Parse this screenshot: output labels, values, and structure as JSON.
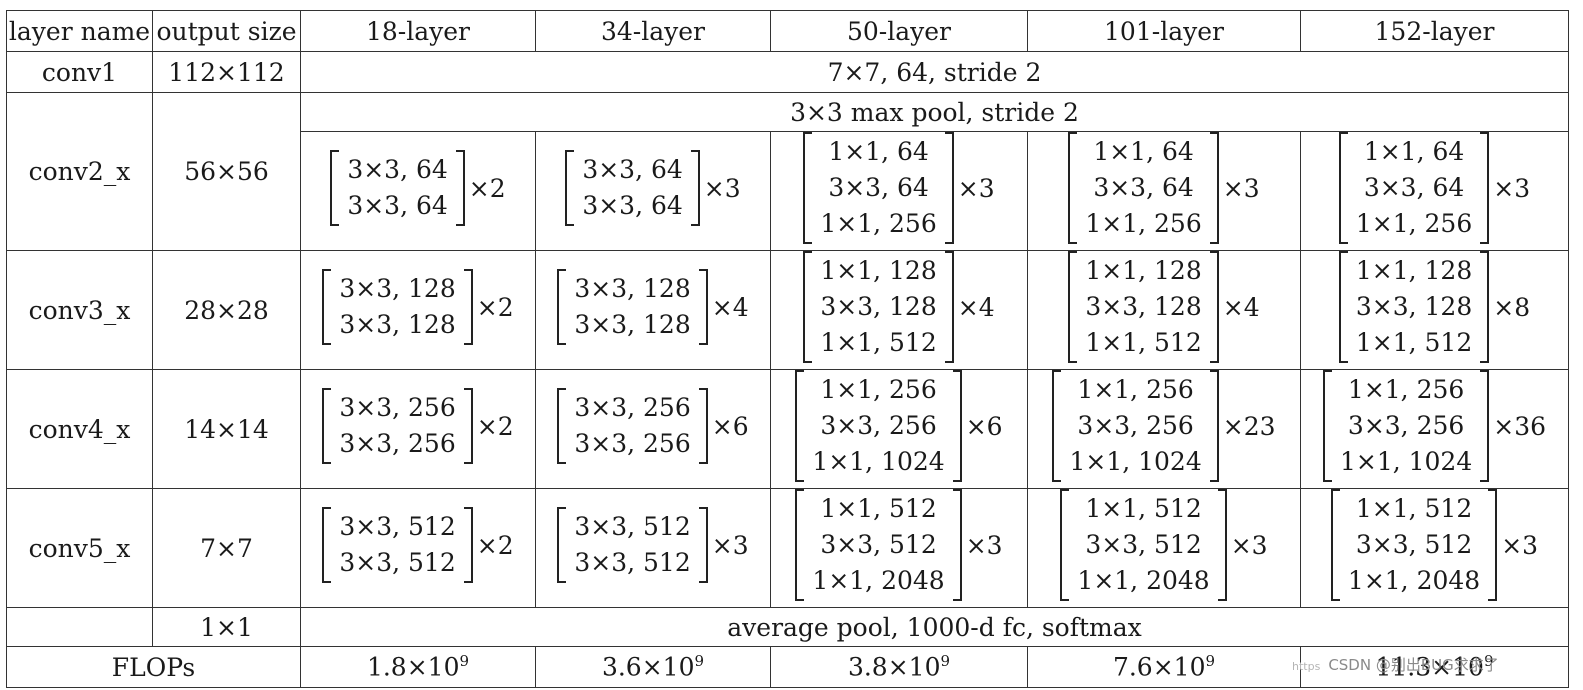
{
  "table": {
    "headers": [
      "layer name",
      "output size",
      "18-layer",
      "34-layer",
      "50-layer",
      "101-layer",
      "152-layer"
    ],
    "conv1": {
      "name": "conv1",
      "output": "112×112",
      "spec": "7×7, 64, stride 2"
    },
    "pool": {
      "spec": "3×3 max pool, stride 2"
    },
    "stages": [
      {
        "name": "conv2_x",
        "output": "56×56",
        "blocks": [
          {
            "lines": [
              "3×3, 64",
              "3×3, 64"
            ],
            "rep": "×2"
          },
          {
            "lines": [
              "3×3, 64",
              "3×3, 64"
            ],
            "rep": "×3"
          },
          {
            "lines": [
              "1×1, 64",
              "3×3, 64",
              "1×1, 256"
            ],
            "rep": "×3"
          },
          {
            "lines": [
              "1×1, 64",
              "3×3, 64",
              "1×1, 256"
            ],
            "rep": "×3"
          },
          {
            "lines": [
              "1×1, 64",
              "3×3, 64",
              "1×1, 256"
            ],
            "rep": "×3"
          }
        ]
      },
      {
        "name": "conv3_x",
        "output": "28×28",
        "blocks": [
          {
            "lines": [
              "3×3, 128",
              "3×3, 128"
            ],
            "rep": "×2"
          },
          {
            "lines": [
              "3×3, 128",
              "3×3, 128"
            ],
            "rep": "×4"
          },
          {
            "lines": [
              "1×1, 128",
              "3×3, 128",
              "1×1, 512"
            ],
            "rep": "×4"
          },
          {
            "lines": [
              "1×1, 128",
              "3×3, 128",
              "1×1, 512"
            ],
            "rep": "×4"
          },
          {
            "lines": [
              "1×1, 128",
              "3×3, 128",
              "1×1, 512"
            ],
            "rep": "×8"
          }
        ]
      },
      {
        "name": "conv4_x",
        "output": "14×14",
        "blocks": [
          {
            "lines": [
              "3×3, 256",
              "3×3, 256"
            ],
            "rep": "×2"
          },
          {
            "lines": [
              "3×3, 256",
              "3×3, 256"
            ],
            "rep": "×6"
          },
          {
            "lines": [
              "1×1, 256",
              "3×3, 256",
              "1×1, 1024"
            ],
            "rep": "×6"
          },
          {
            "lines": [
              "1×1, 256",
              "3×3, 256",
              "1×1, 1024"
            ],
            "rep": "×23"
          },
          {
            "lines": [
              "1×1, 256",
              "3×3, 256",
              "1×1, 1024"
            ],
            "rep": "×36"
          }
        ]
      },
      {
        "name": "conv5_x",
        "output": "7×7",
        "blocks": [
          {
            "lines": [
              "3×3, 512",
              "3×3, 512"
            ],
            "rep": "×2"
          },
          {
            "lines": [
              "3×3, 512",
              "3×3, 512"
            ],
            "rep": "×3"
          },
          {
            "lines": [
              "1×1, 512",
              "3×3, 512",
              "1×1, 2048"
            ],
            "rep": "×3"
          },
          {
            "lines": [
              "1×1, 512",
              "3×3, 512",
              "1×1, 2048"
            ],
            "rep": "×3"
          },
          {
            "lines": [
              "1×1, 512",
              "3×3, 512",
              "1×1, 2048"
            ],
            "rep": "×3"
          }
        ]
      }
    ],
    "final": {
      "output": "1×1",
      "spec": "average pool, 1000-d fc, softmax"
    },
    "flops": {
      "label": "FLOPs",
      "values": [
        {
          "mant": "1.8×10",
          "exp": "9"
        },
        {
          "mant": "3.6×10",
          "exp": "9"
        },
        {
          "mant": "3.8×10",
          "exp": "9"
        },
        {
          "mant": "7.6×10",
          "exp": "9"
        },
        {
          "mant": "11.3×10",
          "exp": "9"
        }
      ]
    }
  },
  "watermark": {
    "prefix": "https",
    "text": "CSDN @别出BUG求求了"
  }
}
